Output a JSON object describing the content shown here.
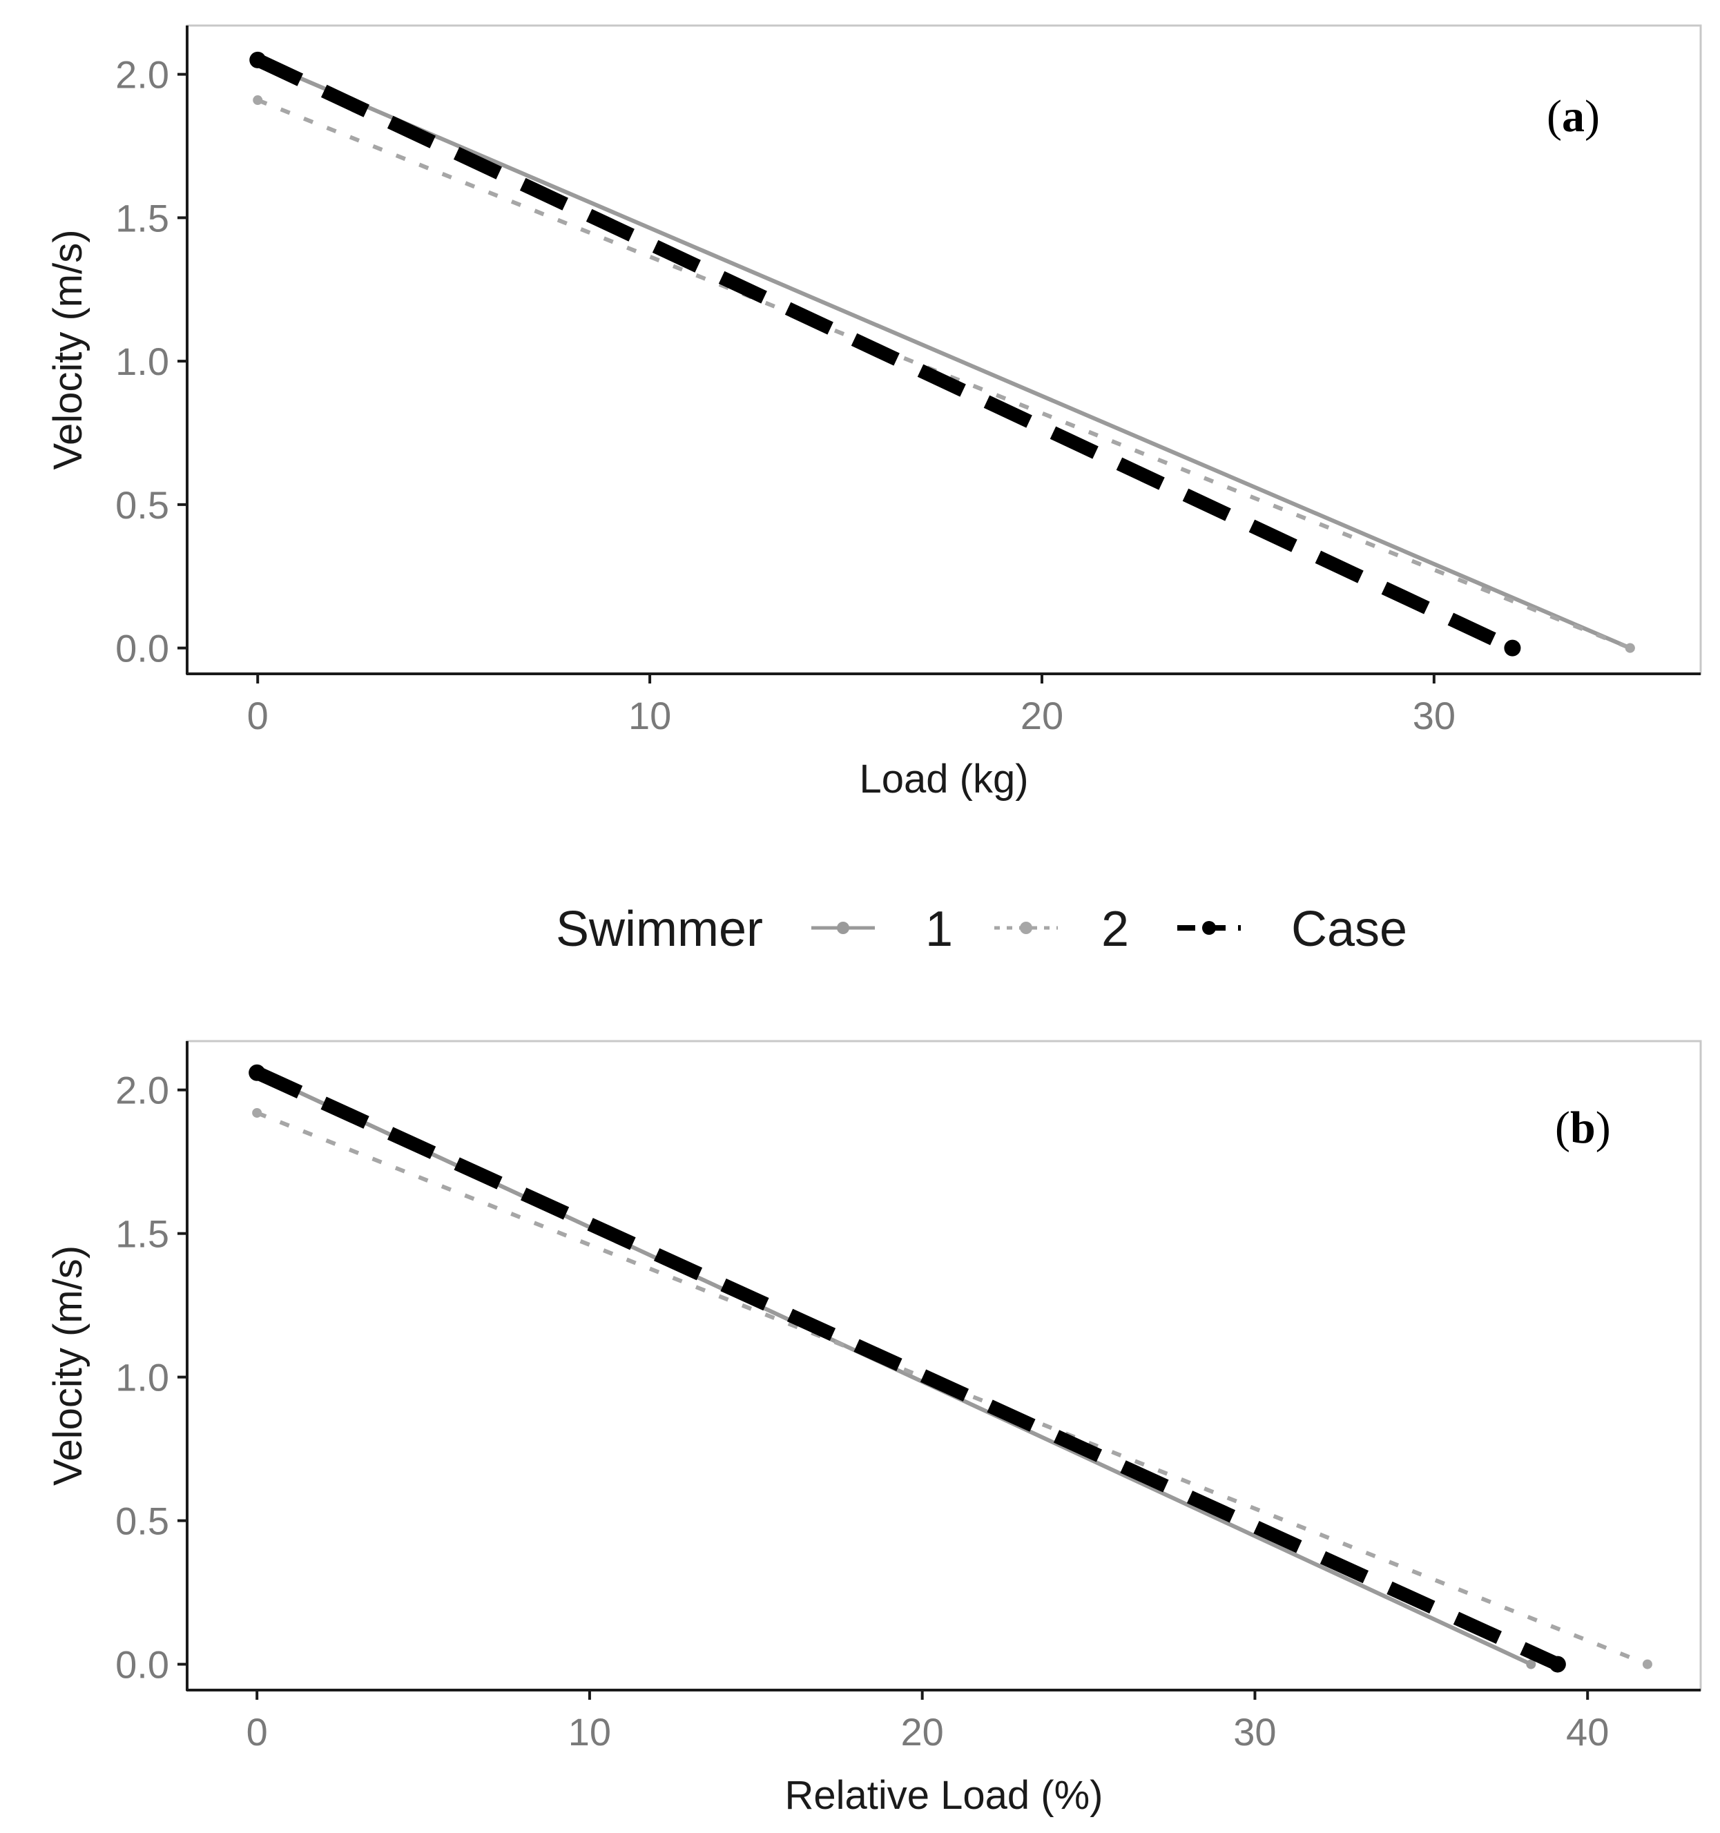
{
  "legend": {
    "title": "Swimmer",
    "entries": [
      {
        "key": "s1",
        "label": "1",
        "color": "#9a9a9a",
        "dash": "solid"
      },
      {
        "key": "s2",
        "label": "2",
        "color": "#a6a6a6",
        "dash": "dotted"
      },
      {
        "key": "case",
        "label": "Case",
        "color": "#000000",
        "dash": "longdash"
      }
    ]
  },
  "chart_data": [
    {
      "type": "line",
      "panel_label_open": "(",
      "panel_label_letter": "a",
      "panel_label_close": ")",
      "xlabel": "Load (kg)",
      "ylabel": "Velocity (m/s)",
      "xlim": [
        -1.8,
        36.8
      ],
      "ylim": [
        -0.09,
        2.17
      ],
      "xticks": [
        0,
        10,
        20,
        30
      ],
      "xtick_labels": [
        "0",
        "10",
        "20",
        "30"
      ],
      "yticks": [
        0.0,
        0.5,
        1.0,
        1.5,
        2.0
      ],
      "ytick_labels": [
        "0.0",
        "0.5",
        "1.0",
        "1.5",
        "2.0"
      ],
      "series": [
        {
          "key": "s1",
          "name": "1",
          "x": [
            0,
            35
          ],
          "y": [
            2.05,
            0.0
          ]
        },
        {
          "key": "s2",
          "name": "2",
          "x": [
            0,
            35
          ],
          "y": [
            1.91,
            0.0
          ]
        },
        {
          "key": "case",
          "name": "Case",
          "x": [
            0,
            32
          ],
          "y": [
            2.05,
            0.0
          ]
        }
      ]
    },
    {
      "type": "line",
      "panel_label_open": "(",
      "panel_label_letter": "b",
      "panel_label_close": ")",
      "xlabel": "Relative Load (%)",
      "ylabel": "Velocity (m/s)",
      "xlim": [
        -2.1,
        43.4
      ],
      "ylim": [
        -0.09,
        2.17
      ],
      "xticks": [
        0,
        10,
        20,
        30,
        40
      ],
      "xtick_labels": [
        "0",
        "10",
        "20",
        "30",
        "40"
      ],
      "yticks": [
        0.0,
        0.5,
        1.0,
        1.5,
        2.0
      ],
      "ytick_labels": [
        "0.0",
        "0.5",
        "1.0",
        "1.5",
        "2.0"
      ],
      "series": [
        {
          "key": "s1",
          "name": "1",
          "x": [
            0,
            38.3
          ],
          "y": [
            2.06,
            0.0
          ]
        },
        {
          "key": "s2",
          "name": "2",
          "x": [
            0,
            41.8
          ],
          "y": [
            1.92,
            0.0
          ]
        },
        {
          "key": "case",
          "name": "Case",
          "x": [
            0,
            39.1
          ],
          "y": [
            2.06,
            0.0
          ]
        }
      ]
    }
  ]
}
